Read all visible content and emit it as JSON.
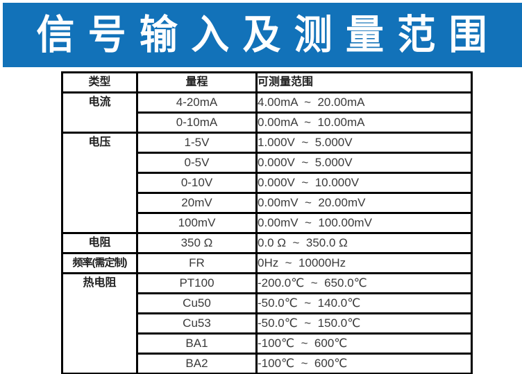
{
  "banner": {
    "title": "信 号 输 入 及 测 量 范 围",
    "bg_color": "#1272b9",
    "text_color": "#ffffff"
  },
  "table": {
    "headers": [
      "类型",
      "量程",
      "可测量范围"
    ],
    "border_color": "#000000",
    "groups": [
      {
        "type": "电流",
        "rows": [
          {
            "range": "4-20mA",
            "measurable": "4.00mA  ~  20.00mA"
          },
          {
            "range": "0-10mA",
            "measurable": "0.00mA  ~  10.00mA"
          }
        ]
      },
      {
        "type": "电压",
        "rows": [
          {
            "range": "1-5V",
            "measurable": "1.000V  ~  5.000V"
          },
          {
            "range": "0-5V",
            "measurable": "0.000V  ~  5.000V"
          },
          {
            "range": "0-10V",
            "measurable": "0.000V  ~  10.000V"
          },
          {
            "range": "20mV",
            "measurable": "0.00mV  ~  20.00mV"
          },
          {
            "range": "100mV",
            "measurable": "0.00mV  ~  100.00mV"
          }
        ]
      },
      {
        "type": "电阻",
        "rows": [
          {
            "range": "350 Ω",
            "measurable": "0.0 Ω  ~  350.0 Ω"
          }
        ]
      },
      {
        "type": "频率(需定制)",
        "rows": [
          {
            "range": "FR",
            "measurable": "0Hz  ~  10000Hz"
          }
        ]
      },
      {
        "type": "热电阻",
        "rows": [
          {
            "range": "PT100",
            "measurable": "-200.0℃  ~  650.0℃"
          },
          {
            "range": "Cu50",
            "measurable": "-50.0℃  ~  140.0℃"
          },
          {
            "range": "Cu53",
            "measurable": "-50.0℃  ~  150.0℃"
          },
          {
            "range": "BA1",
            "measurable": "-100℃  ~  600℃"
          },
          {
            "range": "BA2",
            "measurable": "-100℃  ~  600℃"
          }
        ]
      }
    ]
  }
}
